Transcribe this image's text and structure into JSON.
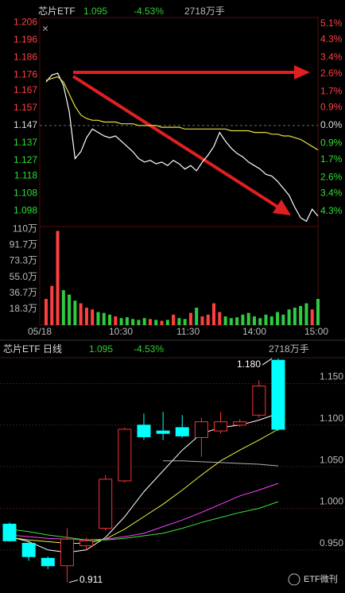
{
  "watermark": "ETF微刊",
  "chart_data": [
    {
      "type": "line",
      "header": {
        "name": "芯片ETF",
        "last": 1.095,
        "change": "-4.53%",
        "volume": "2718万手"
      },
      "ylim": [
        1.089,
        1.209
      ],
      "yticks": [
        1.206,
        1.196,
        1.186,
        1.176,
        1.167,
        1.157,
        1.147,
        1.137,
        1.127,
        1.118,
        1.108,
        1.098
      ],
      "y2lim": [
        -5.06,
        5.41
      ],
      "y2ticks": [
        {
          "value": 5.1,
          "label": "5.1%"
        },
        {
          "value": 4.3,
          "label": "4.3%"
        },
        {
          "value": 3.4,
          "label": "3.4%"
        },
        {
          "value": 2.6,
          "label": "2.6%"
        },
        {
          "value": 1.7,
          "label": "1.7%"
        },
        {
          "value": 0.9,
          "label": "0.9%"
        },
        {
          "value": 0,
          "label": "0.0%"
        },
        {
          "value": -0.9,
          "label": "0.9%"
        },
        {
          "value": -1.7,
          "label": "1.7%"
        },
        {
          "value": -2.6,
          "label": "2.6%"
        },
        {
          "value": -3.4,
          "label": "3.4%"
        },
        {
          "value": -4.3,
          "label": "4.3%"
        }
      ],
      "xticks": [
        "05/18",
        "10:30",
        "11:30",
        "14:00",
        "15:00"
      ],
      "up_color": "#ff4040",
      "down_color": "#33dd33",
      "series": [
        {
          "color": "#ffffff",
          "values": [
            1.172,
            1.176,
            1.177,
            1.17,
            1.155,
            1.128,
            1.132,
            1.14,
            1.145,
            1.143,
            1.141,
            1.14,
            1.141,
            1.138,
            1.135,
            1.132,
            1.128,
            1.126,
            1.127,
            1.125,
            1.126,
            1.124,
            1.127,
            1.125,
            1.122,
            1.124,
            1.121,
            1.126,
            1.13,
            1.135,
            1.143,
            1.138,
            1.134,
            1.131,
            1.129,
            1.126,
            1.124,
            1.122,
            1.119,
            1.118,
            1.115,
            1.111,
            1.107,
            1.1,
            1.094,
            1.092,
            1.099,
            1.095
          ]
        },
        {
          "color": "#e8e040",
          "values": [
            1.173,
            1.174,
            1.175,
            1.172,
            1.165,
            1.158,
            1.153,
            1.151,
            1.15,
            1.15,
            1.149,
            1.149,
            1.149,
            1.148,
            1.148,
            1.148,
            1.147,
            1.147,
            1.147,
            1.147,
            1.146,
            1.146,
            1.146,
            1.146,
            1.145,
            1.145,
            1.145,
            1.145,
            1.145,
            1.145,
            1.145,
            1.145,
            1.144,
            1.144,
            1.144,
            1.144,
            1.143,
            1.143,
            1.143,
            1.142,
            1.142,
            1.141,
            1.141,
            1.14,
            1.139,
            1.137,
            1.135,
            1.133
          ]
        }
      ]
    },
    {
      "type": "bar",
      "ylim": [
        0,
        113
      ],
      "yticks": [
        {
          "value": 110,
          "label": "110万"
        },
        {
          "value": 91.7,
          "label": "91.7万"
        },
        {
          "value": 73.3,
          "label": "73.3万"
        },
        {
          "value": 55.0,
          "label": "55.0万"
        },
        {
          "value": 36.7,
          "label": "36.7万"
        },
        {
          "value": 18.3,
          "label": "18.3万"
        }
      ],
      "up_color": "#ff4040",
      "down_color": "#2ecc40",
      "values": [
        30,
        45,
        108,
        40,
        35,
        28,
        25,
        20,
        18,
        15,
        14,
        12,
        10,
        8,
        9,
        7,
        6,
        8,
        7,
        6,
        5,
        6,
        12,
        8,
        7,
        14,
        20,
        10,
        12,
        25,
        15,
        10,
        8,
        9,
        12,
        14,
        10,
        8,
        12,
        10,
        15,
        12,
        18,
        20,
        22,
        25,
        18,
        30
      ]
    },
    {
      "type": "candlestick",
      "header": {
        "name": "芯片ETF 日线",
        "last": 1.095,
        "change": "-4.53%",
        "volume": "2718万手"
      },
      "ylim": [
        0.904,
        1.181
      ],
      "yticks": [
        {
          "value": 1.15,
          "label": "1.150"
        },
        {
          "value": 1.1,
          "label": "1.100"
        },
        {
          "value": 1.05,
          "label": "1.050"
        },
        {
          "value": 1,
          "label": "1.000"
        },
        {
          "value": 0.95,
          "label": "0.950"
        }
      ],
      "up_color": "#ff3232",
      "down_color": "#00ffff",
      "open": [
        0.981,
        0.958,
        0.94,
        0.931,
        0.955,
        0.976,
        1.033,
        1.1,
        1.093,
        1.097,
        1.085,
        1.093,
        1.1,
        1.112,
        1.178
      ],
      "high": [
        0.983,
        0.961,
        0.942,
        0.976,
        0.965,
        1.04,
        1.097,
        1.114,
        1.116,
        1.112,
        1.109,
        1.116,
        1.107,
        1.154,
        1.18
      ],
      "low": [
        0.96,
        0.937,
        0.927,
        0.911,
        0.95,
        0.973,
        1.031,
        1.082,
        1.082,
        1.085,
        1.062,
        1.09,
        1.098,
        1.109,
        1.093
      ],
      "close": [
        0.961,
        0.942,
        0.931,
        0.963,
        0.961,
        1.035,
        1.095,
        1.086,
        1.09,
        1.087,
        1.104,
        1.104,
        1.104,
        1.147,
        1.095
      ],
      "annotations": [
        {
          "text": "1.180",
          "value": 1.18
        },
        {
          "text": "0.911",
          "value": 0.911
        }
      ],
      "series": [
        {
          "color": "#ffffff",
          "values": [
            0.966,
            0.96,
            0.95,
            0.947,
            0.95,
            0.965,
            0.99,
            1.02,
            1.045,
            1.07,
            1.09,
            1.097,
            1.1,
            1.106,
            1.114
          ]
        },
        {
          "color": "#f0f040",
          "values": [
            0.965,
            0.962,
            0.96,
            0.958,
            0.958,
            0.963,
            0.975,
            0.99,
            1.005,
            1.022,
            1.04,
            1.057,
            1.07,
            1.082,
            1.095
          ]
        },
        {
          "color": "#ff40ff",
          "values": [
            0.968,
            0.966,
            0.964,
            0.963,
            0.962,
            0.963,
            0.966,
            0.97,
            0.978,
            0.986,
            0.995,
            1.005,
            1.015,
            1.022,
            1.03
          ]
        },
        {
          "color": "#40e040",
          "values": [
            0.975,
            0.972,
            0.968,
            0.965,
            0.962,
            0.962,
            0.964,
            0.967,
            0.97,
            0.976,
            0.983,
            0.989,
            0.995,
            1.0,
            1.008
          ]
        },
        {
          "color": "#b0b0b0",
          "values": [
            null,
            null,
            null,
            null,
            null,
            null,
            null,
            null,
            1.057,
            1.057,
            1.056,
            1.055,
            1.054,
            1.053,
            1.051
          ]
        }
      ]
    }
  ]
}
